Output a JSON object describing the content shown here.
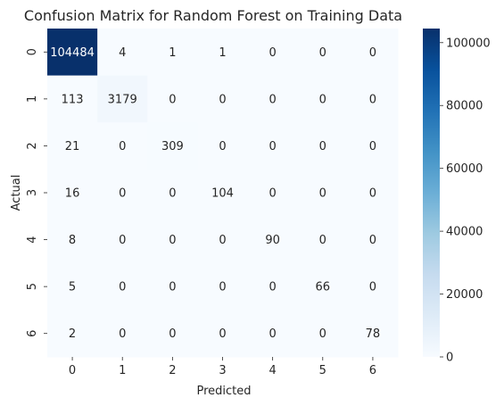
{
  "chart_data": {
    "type": "heatmap",
    "title": "Confusion Matrix for Random Forest on Training Data",
    "xlabel": "Predicted",
    "ylabel": "Actual",
    "x_categories": [
      "0",
      "1",
      "2",
      "3",
      "4",
      "5",
      "6"
    ],
    "y_categories": [
      "0",
      "1",
      "2",
      "3",
      "4",
      "5",
      "6"
    ],
    "values": [
      [
        104484,
        4,
        1,
        1,
        0,
        0,
        0
      ],
      [
        113,
        3179,
        0,
        0,
        0,
        0,
        0
      ],
      [
        21,
        0,
        309,
        0,
        0,
        0,
        0
      ],
      [
        16,
        0,
        0,
        104,
        0,
        0,
        0
      ],
      [
        8,
        0,
        0,
        0,
        90,
        0,
        0
      ],
      [
        5,
        0,
        0,
        0,
        0,
        66,
        0
      ],
      [
        2,
        0,
        0,
        0,
        0,
        0,
        78
      ]
    ],
    "colormap": "Blues",
    "colormap_stops": [
      "#f7fbff",
      "#deebf7",
      "#c6dbef",
      "#9ecae1",
      "#6baed6",
      "#4292c6",
      "#2171b5",
      "#08519c",
      "#08306b"
    ],
    "vmin": 0,
    "vmax": 104484,
    "colorbar_ticks": [
      0,
      20000,
      40000,
      60000,
      80000,
      100000
    ]
  }
}
